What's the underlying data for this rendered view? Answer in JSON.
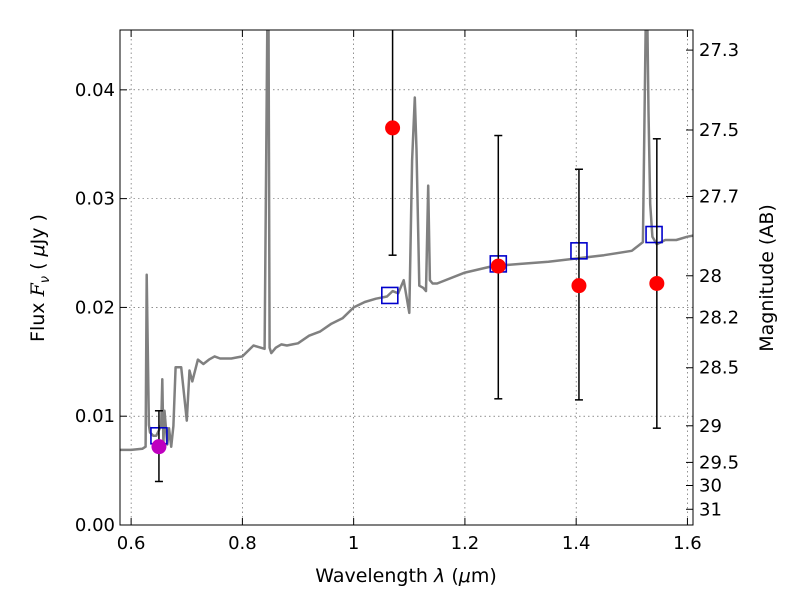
{
  "chart_data": {
    "type": "scatter",
    "xlabel_main": "Wavelength",
    "xlabel_symbol": "λ",
    "xlabel_unit_open": "(",
    "xlabel_unit_mu": "μ",
    "xlabel_unit_rest": "m)",
    "ylabel_main": "Flux",
    "ylabel_symbol": "F",
    "ylabel_subscript": "ν",
    "ylabel_unit_open": "(",
    "ylabel_unit_mu": "μ",
    "ylabel_unit_rest": "Jy )",
    "y2label": "Magnitude (AB)",
    "xlim": [
      0.58,
      1.61
    ],
    "ylim": [
      0.0,
      0.0455
    ],
    "grid": true,
    "x_ticks": [
      {
        "value": 0.6,
        "label": "0.6"
      },
      {
        "value": 0.8,
        "label": "0.8"
      },
      {
        "value": 1.0,
        "label": "1"
      },
      {
        "value": 1.2,
        "label": "1.2"
      },
      {
        "value": 1.4,
        "label": "1.4"
      },
      {
        "value": 1.6,
        "label": "1.6"
      }
    ],
    "y_ticks": [
      {
        "value": 0.0,
        "label": "0.00"
      },
      {
        "value": 0.01,
        "label": "0.01"
      },
      {
        "value": 0.02,
        "label": "0.02"
      },
      {
        "value": 0.03,
        "label": "0.03"
      },
      {
        "value": 0.04,
        "label": "0.04"
      }
    ],
    "y2_ticks": [
      {
        "value": 27.3,
        "label": "27.3"
      },
      {
        "value": 27.5,
        "label": "27.5"
      },
      {
        "value": 27.7,
        "label": "27.7"
      },
      {
        "value": 28.0,
        "label": "28"
      },
      {
        "value": 28.2,
        "label": "28.2"
      },
      {
        "value": 28.5,
        "label": "28.5"
      },
      {
        "value": 29.0,
        "label": "29"
      },
      {
        "value": 29.5,
        "label": "29.5"
      },
      {
        "value": 30.0,
        "label": "30"
      },
      {
        "value": 31.0,
        "label": "31"
      }
    ],
    "series": [
      {
        "kind": "line",
        "color": "#808080",
        "x": [
          0.58,
          0.6,
          0.62,
          0.626,
          0.628,
          0.63,
          0.632,
          0.634,
          0.64,
          0.645,
          0.65,
          0.654,
          0.656,
          0.658,
          0.66,
          0.665,
          0.668,
          0.672,
          0.676,
          0.68,
          0.69,
          0.7,
          0.705,
          0.71,
          0.72,
          0.73,
          0.74,
          0.75,
          0.76,
          0.78,
          0.8,
          0.82,
          0.84,
          0.845,
          0.847,
          0.849,
          0.852,
          0.86,
          0.87,
          0.88,
          0.89,
          0.9,
          0.92,
          0.94,
          0.96,
          0.98,
          1.0,
          1.02,
          1.04,
          1.06,
          1.07,
          1.08,
          1.09,
          1.1,
          1.105,
          1.11,
          1.113,
          1.118,
          1.125,
          1.13,
          1.134,
          1.137,
          1.142,
          1.15,
          1.2,
          1.25,
          1.3,
          1.35,
          1.4,
          1.45,
          1.5,
          1.52,
          1.525,
          1.528,
          1.53,
          1.533,
          1.537,
          1.545,
          1.56,
          1.58,
          1.6,
          1.61
        ],
        "y": [
          0.0069,
          0.0069,
          0.007,
          0.0072,
          0.023,
          0.016,
          0.0092,
          0.0085,
          0.0082,
          0.0082,
          0.0087,
          0.0092,
          0.0134,
          0.0075,
          0.0105,
          0.0074,
          0.0089,
          0.0072,
          0.0091,
          0.0145,
          0.0145,
          0.0096,
          0.0142,
          0.0132,
          0.0152,
          0.0148,
          0.0152,
          0.0155,
          0.0153,
          0.0153,
          0.0155,
          0.0165,
          0.0162,
          0.047,
          0.047,
          0.0163,
          0.0158,
          0.0163,
          0.0166,
          0.0165,
          0.0166,
          0.0167,
          0.0174,
          0.0178,
          0.0185,
          0.019,
          0.02,
          0.0205,
          0.0208,
          0.021,
          0.0215,
          0.0213,
          0.0225,
          0.0195,
          0.0335,
          0.0393,
          0.0345,
          0.022,
          0.0218,
          0.0215,
          0.0312,
          0.0225,
          0.0222,
          0.0222,
          0.0232,
          0.0238,
          0.024,
          0.0242,
          0.0245,
          0.0248,
          0.0252,
          0.026,
          0.046,
          0.046,
          0.038,
          0.0295,
          0.0265,
          0.0258,
          0.0262,
          0.0262,
          0.0265,
          0.0266
        ]
      },
      {
        "kind": "points",
        "name": "",
        "marker": "square",
        "color": "#0000cc",
        "x": [
          0.65,
          1.065,
          1.26,
          1.405,
          1.54
        ],
        "y": [
          0.0082,
          0.0211,
          0.024,
          0.0252,
          0.0267
        ]
      },
      {
        "kind": "points",
        "name": "",
        "marker": "circle",
        "color": "#ff0000",
        "x": [
          1.07,
          1.26,
          1.405,
          1.545
        ],
        "y": [
          0.0365,
          0.0238,
          0.022,
          0.0222
        ],
        "err_low": [
          0.0117,
          0.0122,
          0.0105,
          0.0133
        ],
        "err_high": [
          0.0095,
          0.012,
          0.0107,
          0.0133
        ]
      },
      {
        "kind": "points",
        "name": "",
        "marker": "circle",
        "color": "#bf00bf",
        "x": [
          0.65
        ],
        "y": [
          0.0072
        ],
        "err_low": [
          0.0032
        ],
        "err_high": [
          0.0033
        ]
      }
    ]
  }
}
